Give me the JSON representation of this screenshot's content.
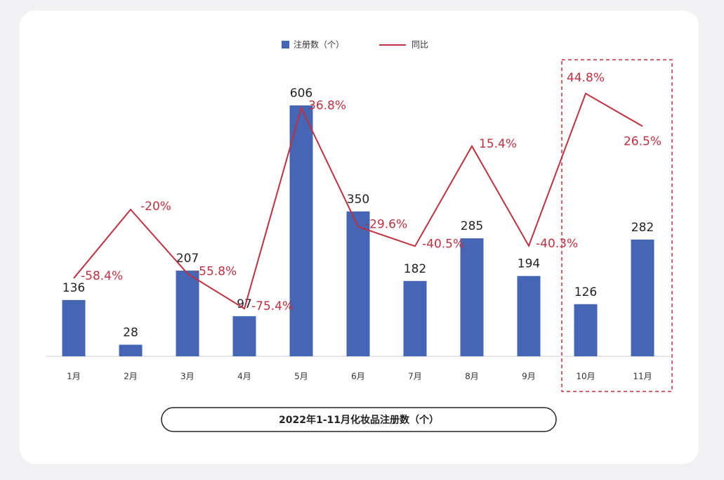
{
  "chart_data": {
    "type": "bar",
    "title": "2022年1-11月化妆品注册数（个）",
    "categories": [
      "1月",
      "2月",
      "3月",
      "4月",
      "5月",
      "6月",
      "7月",
      "8月",
      "9月",
      "10月",
      "11月"
    ],
    "series": [
      {
        "name": "注册数（个）",
        "type": "bar",
        "color": "#4565b5",
        "values": [
          136,
          28,
          207,
          97,
          606,
          350,
          182,
          285,
          194,
          126,
          282
        ]
      },
      {
        "name": "同比",
        "type": "line",
        "axis": "y2",
        "color": "#c0303f",
        "values": [
          -58.4,
          -20,
          -55.8,
          -75.4,
          36.8,
          -29.6,
          -40.5,
          15.4,
          -40.3,
          44.8,
          26.5
        ],
        "value_labels": [
          "-58.4%",
          "-20%",
          "-55.8%",
          "-75.4%",
          "36.8%",
          "-29.6%",
          "-40.5%",
          "15.4%",
          "-40.3%",
          "44.8%",
          "26.5%"
        ]
      }
    ],
    "ylim": [
      0,
      640
    ],
    "y2lim": [
      -102,
      46
    ]
  }
}
